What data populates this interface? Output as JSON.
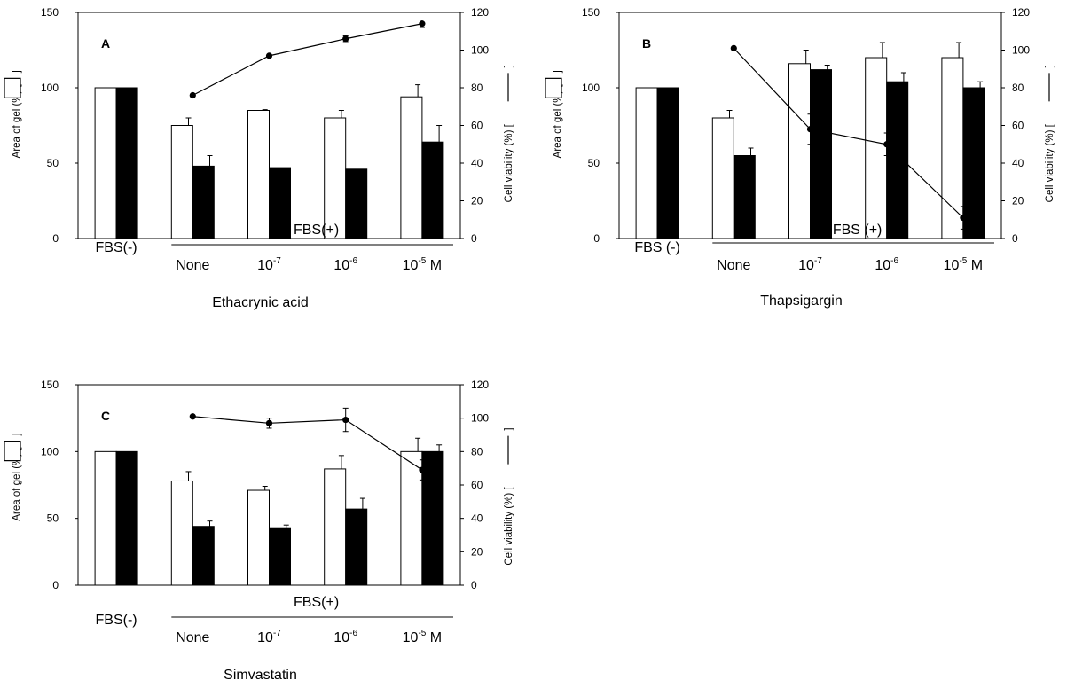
{
  "figure": {
    "unit_suffix": "M"
  },
  "chart_data": [
    {
      "type": "bar",
      "panel": "A",
      "drug": "Ethacrynic acid",
      "ylabel_left": "Area of gel  (%)  [",
      "ylabel_right": "Cell viability  (%)  [",
      "ylim_left": [
        0,
        150
      ],
      "ylim_right": [
        0,
        120
      ],
      "yticks_left": [
        "0",
        "50",
        "100",
        "150"
      ],
      "yticks_right": [
        "0",
        "20",
        "40",
        "60",
        "80",
        "100",
        "120"
      ],
      "group_neg_label": "FBS(-)",
      "group_pos_label": "FBS(+)",
      "categories": [
        "",
        "None",
        "10",
        "10",
        "10"
      ],
      "category_exponents": [
        "",
        "",
        "-7",
        "-6",
        "-5"
      ],
      "series": [
        {
          "style": "open-bar",
          "values": [
            100,
            75,
            85,
            80,
            94
          ],
          "errors": [
            0,
            5,
            0.5,
            5,
            8
          ]
        },
        {
          "style": "filled-bar",
          "values": [
            100,
            48,
            47,
            46,
            64
          ],
          "errors": [
            0,
            7,
            0,
            0,
            11
          ]
        }
      ],
      "line_series": {
        "style": "line-dot",
        "axis": "right",
        "values": [
          null,
          76,
          97,
          106,
          114
        ],
        "errors": [
          0,
          0,
          0,
          1.5,
          2
        ]
      }
    },
    {
      "type": "bar",
      "panel": "B",
      "drug": "Thapsigargin",
      "ylabel_left": "Area of gel  (%)  [",
      "ylabel_right": "Cell viability  (%)  [",
      "ylim_left": [
        0,
        150
      ],
      "ylim_right": [
        0,
        120
      ],
      "yticks_left": [
        "0",
        "50",
        "100",
        "150"
      ],
      "yticks_right": [
        "0",
        "20",
        "40",
        "60",
        "80",
        "100",
        "120"
      ],
      "group_neg_label": "FBS (-)",
      "group_pos_label": "FBS (+)",
      "categories": [
        "",
        "None",
        "10",
        "10",
        "10"
      ],
      "category_exponents": [
        "",
        "",
        "-7",
        "-6",
        "-5"
      ],
      "series": [
        {
          "style": "open-bar",
          "values": [
            100,
            80,
            116,
            120,
            120
          ],
          "errors": [
            0,
            5,
            9,
            10,
            10
          ]
        },
        {
          "style": "filled-bar",
          "values": [
            100,
            55,
            112,
            104,
            100
          ],
          "errors": [
            0,
            5,
            3,
            6,
            4
          ]
        }
      ],
      "line_series": {
        "style": "line-dot",
        "axis": "right",
        "values": [
          null,
          101,
          58,
          50,
          11
        ],
        "errors": [
          0,
          0,
          8,
          6,
          6
        ]
      }
    },
    {
      "type": "bar",
      "panel": "C",
      "drug": "Simvastatin",
      "ylabel_left": "Area of gel  (%)  [",
      "ylabel_right": "Cell viability  (%)  [",
      "ylim_left": [
        0,
        150
      ],
      "ylim_right": [
        0,
        120
      ],
      "yticks_left": [
        "0",
        "50",
        "100",
        "150"
      ],
      "yticks_right": [
        "0",
        "20",
        "40",
        "60",
        "80",
        "100",
        "120"
      ],
      "group_neg_label": "FBS(-)",
      "group_pos_label": "FBS(+)",
      "categories": [
        "",
        "None",
        "10",
        "10",
        "10"
      ],
      "category_exponents": [
        "",
        "",
        "-7",
        "-6",
        "-5"
      ],
      "series": [
        {
          "style": "open-bar",
          "values": [
            100,
            78,
            71,
            87,
            100
          ],
          "errors": [
            0,
            7,
            3,
            10,
            10
          ]
        },
        {
          "style": "filled-bar",
          "values": [
            100,
            44,
            43,
            57,
            100
          ],
          "errors": [
            0,
            4,
            2,
            8,
            5
          ]
        }
      ],
      "line_series": {
        "style": "line-dot",
        "axis": "right",
        "values": [
          null,
          101,
          97,
          99,
          69
        ],
        "errors": [
          0,
          0,
          3,
          7,
          6
        ]
      }
    }
  ]
}
